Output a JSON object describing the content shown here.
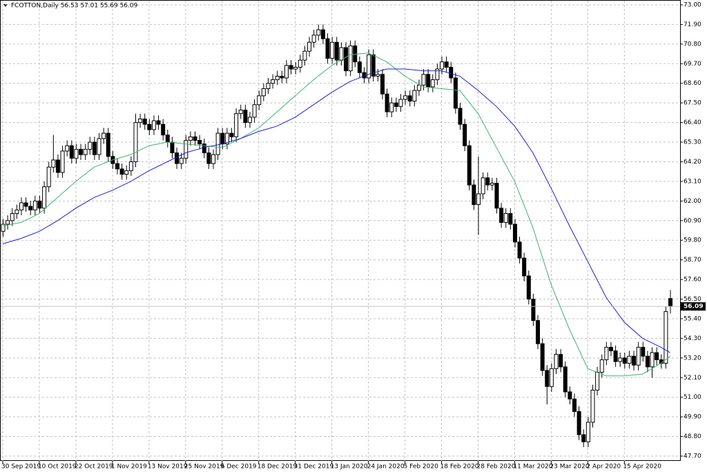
{
  "chart_data": {
    "type": "candlestick",
    "title": "FCOTTON,Daily  56.53 57.01 55.69 56.09",
    "up_color": "#ffffff",
    "down_color": "#000000",
    "grid": true,
    "ylim": [
      47.43,
      73.27
    ],
    "yticks": [
      {
        "value": 73.0,
        "label": "73.00"
      },
      {
        "value": 71.9,
        "label": "71.90"
      },
      {
        "value": 70.8,
        "label": "70.80"
      },
      {
        "value": 69.7,
        "label": "69.70"
      },
      {
        "value": 68.6,
        "label": "68.60"
      },
      {
        "value": 67.5,
        "label": "67.50"
      },
      {
        "value": 66.4,
        "label": "66.40"
      },
      {
        "value": 65.3,
        "label": "65.30"
      },
      {
        "value": 64.2,
        "label": "64.20"
      },
      {
        "value": 63.1,
        "label": "63.10"
      },
      {
        "value": 62.0,
        "label": "62.00"
      },
      {
        "value": 60.9,
        "label": "60.90"
      },
      {
        "value": 59.8,
        "label": "59.80"
      },
      {
        "value": 58.7,
        "label": "58.70"
      },
      {
        "value": 57.6,
        "label": "57.60"
      },
      {
        "value": 56.5,
        "label": "56.50"
      },
      {
        "value": 55.4,
        "label": "55.40"
      },
      {
        "value": 54.3,
        "label": "54.30"
      },
      {
        "value": 53.2,
        "label": "53.20"
      },
      {
        "value": 52.1,
        "label": "52.10"
      },
      {
        "value": 51.0,
        "label": "51.00"
      },
      {
        "value": 49.9,
        "label": "49.90"
      },
      {
        "value": 48.8,
        "label": "48.80"
      },
      {
        "value": 47.7,
        "label": "47.70"
      }
    ],
    "last_price": {
      "value": 56.09,
      "label": "56.09"
    },
    "xticks": [
      {
        "value": 0,
        "label": "30 Sep 2019"
      },
      {
        "value": 8,
        "label": "10 Oct 2019"
      },
      {
        "value": 16,
        "label": "22 Oct 2019"
      },
      {
        "value": 24,
        "label": "1 Nov 2019"
      },
      {
        "value": 32,
        "label": "13 Nov 2019"
      },
      {
        "value": 40,
        "label": "25 Nov 2019"
      },
      {
        "value": 48,
        "label": "6 Dec 2019"
      },
      {
        "value": 56,
        "label": "18 Dec 2019"
      },
      {
        "value": 64,
        "label": "31 Dec 2019"
      },
      {
        "value": 72,
        "label": "13 Jan 2020"
      },
      {
        "value": 80,
        "label": "24 Jan 2020"
      },
      {
        "value": 88,
        "label": "5 Feb 2020"
      },
      {
        "value": 96,
        "label": "18 Feb 2020"
      },
      {
        "value": 104,
        "label": "28 Feb 2020"
      },
      {
        "value": 112,
        "label": "11 Mar 2020"
      },
      {
        "value": 120,
        "label": "23 Mar 2020"
      },
      {
        "value": 128,
        "label": "2 Apr 2020"
      },
      {
        "value": 136,
        "label": "15 Apr 2020"
      }
    ],
    "candles": [
      [
        60.3,
        61.0,
        60.0,
        60.7
      ],
      [
        60.7,
        61.2,
        60.4,
        60.9
      ],
      [
        60.9,
        61.6,
        60.6,
        61.3
      ],
      [
        61.3,
        61.8,
        61.0,
        61.5
      ],
      [
        61.5,
        62.2,
        61.2,
        61.9
      ],
      [
        61.9,
        62.2,
        61.4,
        61.7
      ],
      [
        61.7,
        62.0,
        61.2,
        61.5
      ],
      [
        61.5,
        62.3,
        61.2,
        62.0
      ],
      [
        62.0,
        62.3,
        61.3,
        61.6
      ],
      [
        61.6,
        63.1,
        61.3,
        62.8
      ],
      [
        62.8,
        64.2,
        62.5,
        63.9
      ],
      [
        63.9,
        65.7,
        63.6,
        64.3
      ],
      [
        64.3,
        64.6,
        63.3,
        63.6
      ],
      [
        63.6,
        65.1,
        63.3,
        64.8
      ],
      [
        64.8,
        65.4,
        64.5,
        65.1
      ],
      [
        65.1,
        65.4,
        64.1,
        64.4
      ],
      [
        64.4,
        65.2,
        64.1,
        64.9
      ],
      [
        64.9,
        65.2,
        64.3,
        64.6
      ],
      [
        64.6,
        65.2,
        64.3,
        64.9
      ],
      [
        64.9,
        65.6,
        64.6,
        65.3
      ],
      [
        65.3,
        65.6,
        64.3,
        64.6
      ],
      [
        64.6,
        65.8,
        64.3,
        65.5
      ],
      [
        65.5,
        66.1,
        65.2,
        65.8
      ],
      [
        65.8,
        66.1,
        64.2,
        64.5
      ],
      [
        64.5,
        64.8,
        63.8,
        64.1
      ],
      [
        64.1,
        64.4,
        63.5,
        63.8
      ],
      [
        63.8,
        64.1,
        63.2,
        63.5
      ],
      [
        63.5,
        64.0,
        63.2,
        63.7
      ],
      [
        63.7,
        64.5,
        63.4,
        64.2
      ],
      [
        64.2,
        66.9,
        63.9,
        66.4
      ],
      [
        66.4,
        66.9,
        66.1,
        66.6
      ],
      [
        66.6,
        66.9,
        66.0,
        66.3
      ],
      [
        66.3,
        66.6,
        65.7,
        66.0
      ],
      [
        66.0,
        66.8,
        65.7,
        66.5
      ],
      [
        66.5,
        66.8,
        66.0,
        66.3
      ],
      [
        66.3,
        66.6,
        65.4,
        65.7
      ],
      [
        65.7,
        66.0,
        65.0,
        65.3
      ],
      [
        65.3,
        65.6,
        64.4,
        64.7
      ],
      [
        64.7,
        65.0,
        63.8,
        64.1
      ],
      [
        64.1,
        64.7,
        63.8,
        64.4
      ],
      [
        64.4,
        65.7,
        64.1,
        65.4
      ],
      [
        65.4,
        65.9,
        65.1,
        65.6
      ],
      [
        65.6,
        65.9,
        65.1,
        65.4
      ],
      [
        65.4,
        65.7,
        64.9,
        65.2
      ],
      [
        65.2,
        65.5,
        64.4,
        64.7
      ],
      [
        64.7,
        65.0,
        63.8,
        64.1
      ],
      [
        64.1,
        64.9,
        63.8,
        64.6
      ],
      [
        64.6,
        66.1,
        64.3,
        65.8
      ],
      [
        65.8,
        66.1,
        64.9,
        65.2
      ],
      [
        65.2,
        66.1,
        64.9,
        65.8
      ],
      [
        65.8,
        66.1,
        65.3,
        65.6
      ],
      [
        65.6,
        67.2,
        65.3,
        66.9
      ],
      [
        66.9,
        67.4,
        66.6,
        67.1
      ],
      [
        67.1,
        67.4,
        66.1,
        66.4
      ],
      [
        66.4,
        67.0,
        66.1,
        66.7
      ],
      [
        66.7,
        67.7,
        66.4,
        67.4
      ],
      [
        67.4,
        68.2,
        67.1,
        67.9
      ],
      [
        67.9,
        68.6,
        67.6,
        68.3
      ],
      [
        68.3,
        68.9,
        68.0,
        68.6
      ],
      [
        68.6,
        69.1,
        68.3,
        68.8
      ],
      [
        68.8,
        69.3,
        68.5,
        69.0
      ],
      [
        69.0,
        69.3,
        68.6,
        68.9
      ],
      [
        68.9,
        69.9,
        68.6,
        69.6
      ],
      [
        69.6,
        69.9,
        69.1,
        69.4
      ],
      [
        69.4,
        69.8,
        69.1,
        69.5
      ],
      [
        69.5,
        70.2,
        69.2,
        69.9
      ],
      [
        69.9,
        70.7,
        69.6,
        70.4
      ],
      [
        70.4,
        71.2,
        70.1,
        70.9
      ],
      [
        70.9,
        71.6,
        70.6,
        71.3
      ],
      [
        71.3,
        71.9,
        71.0,
        71.6
      ],
      [
        71.6,
        71.9,
        70.8,
        71.1
      ],
      [
        71.1,
        71.4,
        69.7,
        70.0
      ],
      [
        70.0,
        71.2,
        69.7,
        70.9
      ],
      [
        70.9,
        71.2,
        69.6,
        69.9
      ],
      [
        69.9,
        70.9,
        69.6,
        70.6
      ],
      [
        70.6,
        70.9,
        69.0,
        69.3
      ],
      [
        69.3,
        71.0,
        69.0,
        70.7
      ],
      [
        70.7,
        71.0,
        69.5,
        69.8
      ],
      [
        69.8,
        70.1,
        68.9,
        69.2
      ],
      [
        69.2,
        69.5,
        68.6,
        68.9
      ],
      [
        68.9,
        70.5,
        68.6,
        70.2
      ],
      [
        70.2,
        70.5,
        68.7,
        69.0
      ],
      [
        69.0,
        69.4,
        68.7,
        69.1
      ],
      [
        69.1,
        69.4,
        67.7,
        68.0
      ],
      [
        68.0,
        68.3,
        66.7,
        67.0
      ],
      [
        67.0,
        67.8,
        66.7,
        67.5
      ],
      [
        67.5,
        67.8,
        67.0,
        67.3
      ],
      [
        67.3,
        68.0,
        67.0,
        67.7
      ],
      [
        67.7,
        68.2,
        67.4,
        67.9
      ],
      [
        67.9,
        68.2,
        67.3,
        67.6
      ],
      [
        67.6,
        68.5,
        67.3,
        68.2
      ],
      [
        68.2,
        68.8,
        67.9,
        68.5
      ],
      [
        68.5,
        69.4,
        68.2,
        69.1
      ],
      [
        69.1,
        69.4,
        68.1,
        68.4
      ],
      [
        68.4,
        69.1,
        68.1,
        68.8
      ],
      [
        68.8,
        69.7,
        68.5,
        69.4
      ],
      [
        69.4,
        70.1,
        69.1,
        69.8
      ],
      [
        69.8,
        70.1,
        69.2,
        69.5
      ],
      [
        69.5,
        69.8,
        68.6,
        68.9
      ],
      [
        68.9,
        69.2,
        66.9,
        67.2
      ],
      [
        67.2,
        67.5,
        66.0,
        66.3
      ],
      [
        66.3,
        66.6,
        64.8,
        65.1
      ],
      [
        65.1,
        65.4,
        62.6,
        62.9
      ],
      [
        62.9,
        63.2,
        61.5,
        61.8
      ],
      [
        61.8,
        64.5,
        60.1,
        62.4
      ],
      [
        62.4,
        63.6,
        62.1,
        63.3
      ],
      [
        63.3,
        63.6,
        62.6,
        62.9
      ],
      [
        62.9,
        63.3,
        62.6,
        63.0
      ],
      [
        63.0,
        63.3,
        61.3,
        61.6
      ],
      [
        61.6,
        61.9,
        60.5,
        60.8
      ],
      [
        60.8,
        61.6,
        60.5,
        61.3
      ],
      [
        61.3,
        61.6,
        60.4,
        60.7
      ],
      [
        60.7,
        61.0,
        59.4,
        59.7
      ],
      [
        59.7,
        60.0,
        58.5,
        58.8
      ],
      [
        58.8,
        59.1,
        57.5,
        57.8
      ],
      [
        57.8,
        58.1,
        56.2,
        56.5
      ],
      [
        56.5,
        56.8,
        55.0,
        55.3
      ],
      [
        55.3,
        55.6,
        53.7,
        54.0
      ],
      [
        54.0,
        54.3,
        52.2,
        52.5
      ],
      [
        52.5,
        52.8,
        50.6,
        51.6
      ],
      [
        51.6,
        52.9,
        51.3,
        52.6
      ],
      [
        52.6,
        53.7,
        52.3,
        53.4
      ],
      [
        53.4,
        53.7,
        52.4,
        52.7
      ],
      [
        52.7,
        53.0,
        51.0,
        51.3
      ],
      [
        51.3,
        51.6,
        50.6,
        50.9
      ],
      [
        50.9,
        51.2,
        49.9,
        50.2
      ],
      [
        50.2,
        50.5,
        48.6,
        48.9
      ],
      [
        48.9,
        49.2,
        48.2,
        48.5
      ],
      [
        48.5,
        49.9,
        48.2,
        49.6
      ],
      [
        49.6,
        51.7,
        49.3,
        51.4
      ],
      [
        51.4,
        52.7,
        51.1,
        52.4
      ],
      [
        52.4,
        53.4,
        52.1,
        53.1
      ],
      [
        53.1,
        54.1,
        52.8,
        53.8
      ],
      [
        53.8,
        54.1,
        53.3,
        53.6
      ],
      [
        53.6,
        53.9,
        52.7,
        53.0
      ],
      [
        53.0,
        53.5,
        52.7,
        53.2
      ],
      [
        53.2,
        53.5,
        52.6,
        52.9
      ],
      [
        52.9,
        53.6,
        52.6,
        53.3
      ],
      [
        53.3,
        53.6,
        52.5,
        52.8
      ],
      [
        52.8,
        54.1,
        52.5,
        53.8
      ],
      [
        53.8,
        54.1,
        53.0,
        53.3
      ],
      [
        53.3,
        53.6,
        52.4,
        52.7
      ],
      [
        52.7,
        53.8,
        52.1,
        53.5
      ],
      [
        53.5,
        53.8,
        52.8,
        53.1
      ],
      [
        53.1,
        53.4,
        52.6,
        52.9
      ],
      [
        52.9,
        56.1,
        52.6,
        55.8
      ],
      [
        56.53,
        57.01,
        55.69,
        56.09
      ]
    ],
    "series": [
      {
        "color": "#3cb371",
        "x": [
          0,
          4,
          8,
          12,
          16,
          20,
          24,
          28,
          32,
          36,
          40,
          44,
          48,
          52,
          56,
          60,
          64,
          68,
          72,
          76,
          80,
          84,
          88,
          92,
          96,
          100,
          104,
          108,
          112,
          116,
          120,
          124,
          128,
          132,
          136,
          140,
          144,
          146
        ],
        "values": [
          60.6,
          60.8,
          61.3,
          62.2,
          63.1,
          63.9,
          64.3,
          64.6,
          65.1,
          65.3,
          65.2,
          65.1,
          65.0,
          65.5,
          66.1,
          67.0,
          67.9,
          68.8,
          69.6,
          70.2,
          70.3,
          69.8,
          69.0,
          68.4,
          68.3,
          68.2,
          66.9,
          65.0,
          63.1,
          60.5,
          57.3,
          54.8,
          52.6,
          52.2,
          52.2,
          52.3,
          52.9,
          53.3
        ]
      },
      {
        "color": "#1c1cd6",
        "x": [
          0,
          4,
          8,
          12,
          16,
          20,
          24,
          28,
          32,
          36,
          40,
          44,
          48,
          52,
          56,
          60,
          64,
          68,
          72,
          76,
          80,
          84,
          88,
          92,
          96,
          100,
          104,
          108,
          112,
          116,
          120,
          124,
          128,
          132,
          136,
          140,
          144,
          146
        ],
        "values": [
          59.6,
          59.9,
          60.3,
          60.9,
          61.6,
          62.2,
          62.6,
          63.1,
          63.7,
          64.2,
          64.7,
          65.0,
          65.2,
          65.5,
          65.9,
          66.2,
          66.7,
          67.4,
          68.1,
          68.7,
          69.1,
          69.4,
          69.4,
          69.3,
          69.3,
          69.0,
          68.2,
          67.3,
          66.2,
          64.7,
          62.7,
          60.6,
          58.6,
          56.6,
          55.2,
          54.3,
          53.8,
          53.5
        ]
      }
    ]
  }
}
